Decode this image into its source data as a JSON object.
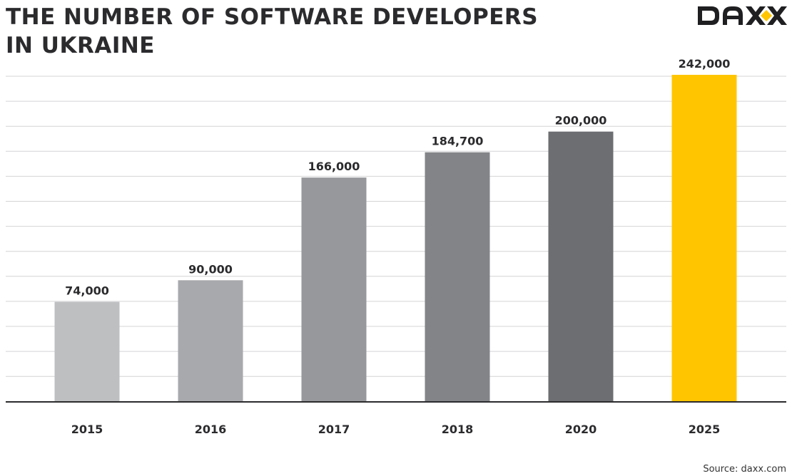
{
  "title_line1": "THE NUMBER OF SOFTWARE DEVELOPERS",
  "title_line2": "IN UKRAINE",
  "logo_text": "DAXX",
  "source": "Source: daxx.com",
  "chart_data": {
    "type": "bar",
    "categories": [
      "2015",
      "2016",
      "2017",
      "2018",
      "2020",
      "2025"
    ],
    "values": [
      74000,
      90000,
      166000,
      184700,
      200000,
      242000
    ],
    "value_labels": [
      "74,000",
      "90,000",
      "166,000",
      "184,700",
      "200,000",
      "242,000"
    ],
    "colors": [
      "#bebfc1",
      "#a8a9ad",
      "#97989c",
      "#838488",
      "#6d6e72",
      "#ffc600"
    ],
    "title": "THE NUMBER OF SOFTWARE DEVELOPERS IN UKRAINE",
    "xlabel": "",
    "ylabel": "",
    "ylim": [
      0,
      242000
    ],
    "grid": true,
    "legend": "none"
  }
}
